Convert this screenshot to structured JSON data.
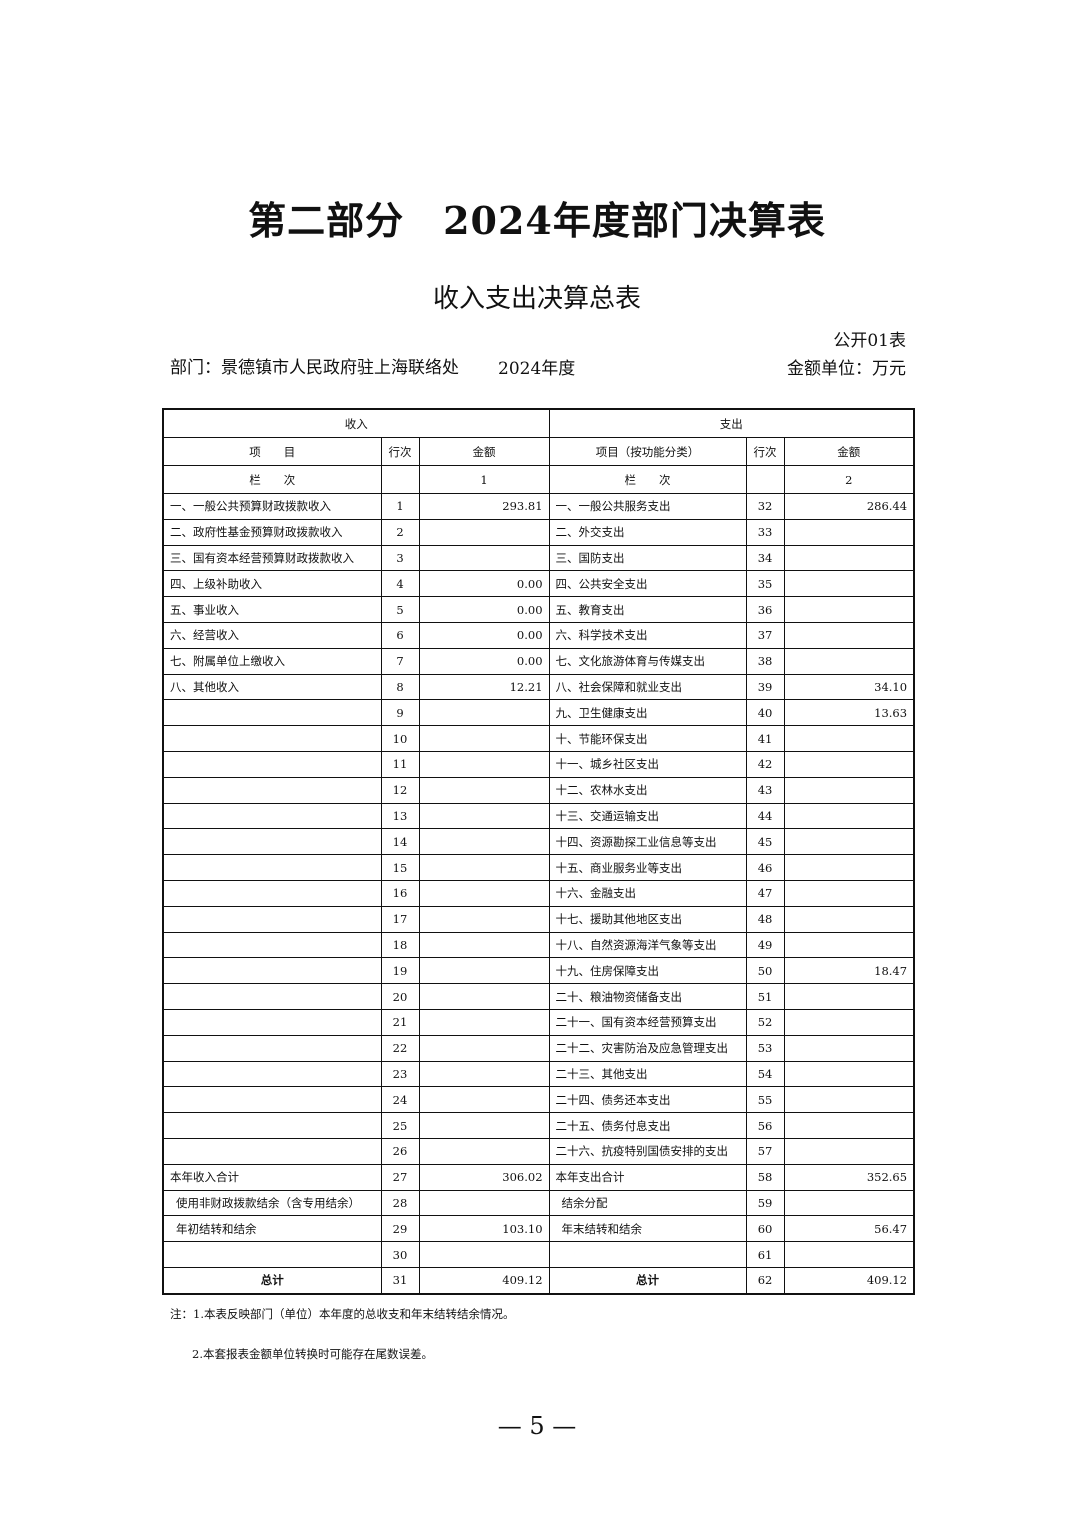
{
  "title": "第二部分　2024年度部门决算表",
  "subtitle": "收入支出决算总表",
  "form_no": "公开01表",
  "department": "部门：景德镇市人民政府驻上海联络处",
  "year": "2024年度",
  "unit": "金额单位：万元",
  "table": {
    "income_header": "收入",
    "expense_header": "支出",
    "col_item": "项　　目",
    "col_line": "行次",
    "col_amount": "金额",
    "col_item_func": "项目（按功能分类）",
    "col_line2": "行次",
    "col_amount2": "金额",
    "lanci": "栏　　次",
    "lanci_1": "1",
    "lanci2": "栏　　次",
    "lanci_2": "2",
    "rows": [
      [
        "一、一般公共预算财政拨款收入",
        "1",
        "293.81",
        "一、一般公共服务支出",
        "32",
        "286.44"
      ],
      [
        "二、政府性基金预算财政拨款收入",
        "2",
        "",
        "二、外交支出",
        "33",
        ""
      ],
      [
        "三、国有资本经营预算财政拨款收入",
        "3",
        "",
        "三、国防支出",
        "34",
        ""
      ],
      [
        "四、上级补助收入",
        "4",
        "0.00",
        "四、公共安全支出",
        "35",
        ""
      ],
      [
        "五、事业收入",
        "5",
        "0.00",
        "五、教育支出",
        "36",
        ""
      ],
      [
        "六、经营收入",
        "6",
        "0.00",
        "六、科学技术支出",
        "37",
        ""
      ],
      [
        "七、附属单位上缴收入",
        "7",
        "0.00",
        "七、文化旅游体育与传媒支出",
        "38",
        ""
      ],
      [
        "八、其他收入",
        "8",
        "12.21",
        "八、社会保障和就业支出",
        "39",
        "34.10"
      ],
      [
        "",
        "9",
        "",
        "九、卫生健康支出",
        "40",
        "13.63"
      ],
      [
        "",
        "10",
        "",
        "十、节能环保支出",
        "41",
        ""
      ],
      [
        "",
        "11",
        "",
        "十一、城乡社区支出",
        "42",
        ""
      ],
      [
        "",
        "12",
        "",
        "十二、农林水支出",
        "43",
        ""
      ],
      [
        "",
        "13",
        "",
        "十三、交通运输支出",
        "44",
        ""
      ],
      [
        "",
        "14",
        "",
        "十四、资源勘探工业信息等支出",
        "45",
        ""
      ],
      [
        "",
        "15",
        "",
        "十五、商业服务业等支出",
        "46",
        ""
      ],
      [
        "",
        "16",
        "",
        "十六、金融支出",
        "47",
        ""
      ],
      [
        "",
        "17",
        "",
        "十七、援助其他地区支出",
        "48",
        ""
      ],
      [
        "",
        "18",
        "",
        "十八、自然资源海洋气象等支出",
        "49",
        ""
      ],
      [
        "",
        "19",
        "",
        "十九、住房保障支出",
        "50",
        "18.47"
      ],
      [
        "",
        "20",
        "",
        "二十、粮油物资储备支出",
        "51",
        ""
      ],
      [
        "",
        "21",
        "",
        "二十一、国有资本经营预算支出",
        "52",
        ""
      ],
      [
        "",
        "22",
        "",
        "二十二、灾害防治及应急管理支出",
        "53",
        ""
      ],
      [
        "",
        "23",
        "",
        "二十三、其他支出",
        "54",
        ""
      ],
      [
        "",
        "24",
        "",
        "二十四、债务还本支出",
        "55",
        ""
      ],
      [
        "",
        "25",
        "",
        "二十五、债务付息支出",
        "56",
        ""
      ],
      [
        "",
        "26",
        "",
        "二十六、抗疫特别国债安排的支出",
        "57",
        ""
      ],
      [
        "本年收入合计",
        "27",
        "306.02",
        "本年支出合计",
        "58",
        "352.65"
      ],
      [
        "使用非财政拨款结余（含专用结余）",
        "28",
        "",
        "结余分配",
        "59",
        ""
      ],
      [
        "年初结转和结余",
        "29",
        "103.10",
        "年末结转和结余",
        "60",
        "56.47"
      ],
      [
        "",
        "30",
        "",
        "",
        "61",
        ""
      ],
      [
        "总计",
        "31",
        "409.12",
        "总计",
        "62",
        "409.12"
      ]
    ]
  },
  "notes": [
    "注：1.本表反映部门（单位）本年度的总收支和年末结转结余情况。",
    "2.本套报表金额单位转换时可能存在尾数误差。"
  ],
  "page_number": "— 5 —"
}
